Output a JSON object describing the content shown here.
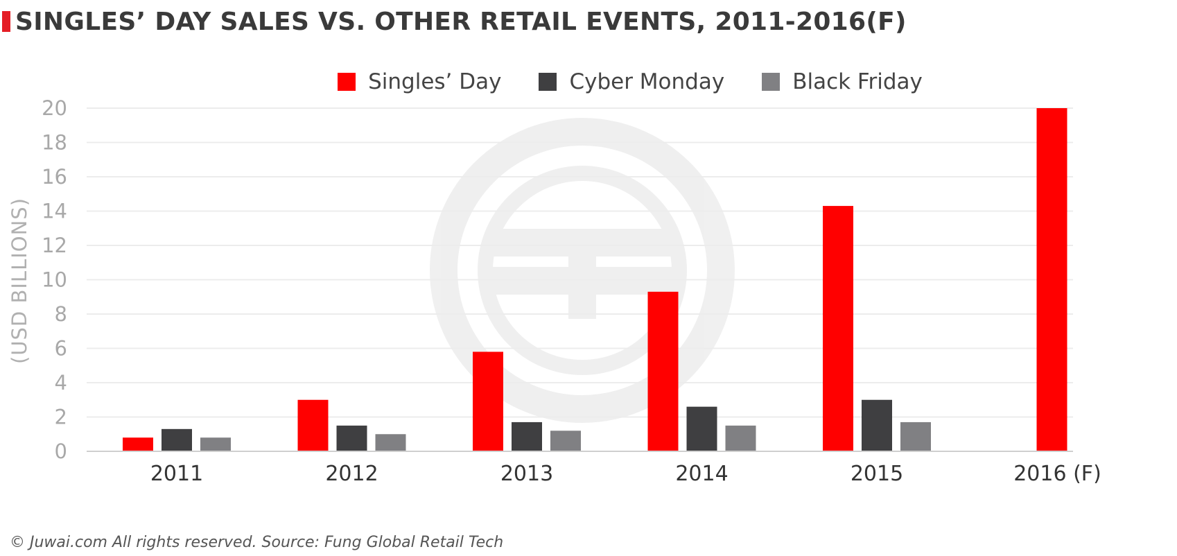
{
  "header": {
    "title": "SINGLES’ DAY SALES VS. OTHER RETAIL EVENTS, 2011-2016(F)",
    "accent_color": "#e41e26"
  },
  "legend": {
    "items": [
      {
        "label": "Singles’ Day",
        "color": "#ff0000"
      },
      {
        "label": "Cyber Monday",
        "color": "#3f3f41"
      },
      {
        "label": "Black Friday",
        "color": "#808083"
      }
    ]
  },
  "footer": {
    "source": "© Juwai.com All rights reserved. Source: Fung Global Retail Tech"
  },
  "chart_data": {
    "type": "bar",
    "title": "SINGLES’ DAY SALES VS. OTHER RETAIL EVENTS, 2011-2016(F)",
    "xlabel": "",
    "ylabel": "(USD BILLIONS)",
    "categories": [
      "2011",
      "2012",
      "2013",
      "2014",
      "2015",
      "2016 (F)"
    ],
    "ylim": [
      0,
      20
    ],
    "yticks": [
      0,
      2,
      4,
      6,
      8,
      10,
      12,
      14,
      16,
      18,
      20
    ],
    "grid": true,
    "legend_position": "top-center",
    "series": [
      {
        "name": "Singles’ Day",
        "color": "#ff0000",
        "values": [
          0.8,
          3.0,
          5.8,
          9.3,
          14.3,
          20.0
        ]
      },
      {
        "name": "Cyber Monday",
        "color": "#3f3f41",
        "values": [
          1.3,
          1.5,
          1.7,
          2.6,
          3.0,
          null
        ]
      },
      {
        "name": "Black Friday",
        "color": "#808083",
        "values": [
          0.8,
          1.0,
          1.2,
          1.5,
          1.7,
          null
        ]
      }
    ]
  }
}
